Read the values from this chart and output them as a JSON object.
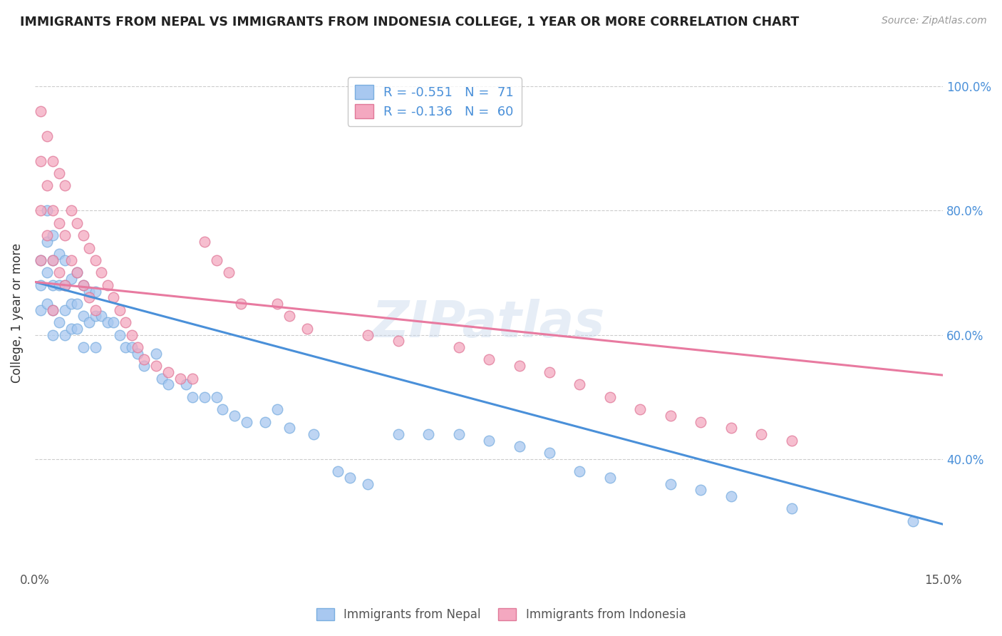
{
  "title": "IMMIGRANTS FROM NEPAL VS IMMIGRANTS FROM INDONESIA COLLEGE, 1 YEAR OR MORE CORRELATION CHART",
  "source": "Source: ZipAtlas.com",
  "ylabel": "College, 1 year or more",
  "watermark": "ZIPatlas",
  "nepal_color": "#a8c8f0",
  "nepal_edge_color": "#7aaee0",
  "indonesia_color": "#f4a8c0",
  "indonesia_edge_color": "#e07898",
  "nepal_line_color": "#4a90d9",
  "indonesia_line_color": "#e87aa0",
  "nepal_R": "-0.551",
  "nepal_N": "71",
  "indonesia_R": "-0.136",
  "indonesia_N": "60",
  "xlim": [
    0.0,
    0.15
  ],
  "ylim": [
    0.22,
    1.05
  ],
  "nepal_trend_x0": 0.0,
  "nepal_trend_y0": 0.685,
  "nepal_trend_x1": 0.15,
  "nepal_trend_y1": 0.295,
  "indonesia_trend_x0": 0.0,
  "indonesia_trend_y0": 0.685,
  "indonesia_trend_x1": 0.15,
  "indonesia_trend_y1": 0.535,
  "nepal_x": [
    0.001,
    0.001,
    0.001,
    0.002,
    0.002,
    0.002,
    0.002,
    0.003,
    0.003,
    0.003,
    0.003,
    0.003,
    0.004,
    0.004,
    0.004,
    0.005,
    0.005,
    0.005,
    0.005,
    0.006,
    0.006,
    0.006,
    0.007,
    0.007,
    0.007,
    0.008,
    0.008,
    0.008,
    0.009,
    0.009,
    0.01,
    0.01,
    0.01,
    0.011,
    0.012,
    0.013,
    0.014,
    0.015,
    0.016,
    0.017,
    0.018,
    0.02,
    0.021,
    0.022,
    0.025,
    0.026,
    0.028,
    0.03,
    0.031,
    0.033,
    0.035,
    0.038,
    0.04,
    0.042,
    0.046,
    0.05,
    0.052,
    0.055,
    0.06,
    0.065,
    0.07,
    0.075,
    0.08,
    0.085,
    0.09,
    0.095,
    0.105,
    0.11,
    0.115,
    0.125,
    0.145
  ],
  "nepal_y": [
    0.72,
    0.68,
    0.64,
    0.8,
    0.75,
    0.7,
    0.65,
    0.76,
    0.72,
    0.68,
    0.64,
    0.6,
    0.73,
    0.68,
    0.62,
    0.72,
    0.68,
    0.64,
    0.6,
    0.69,
    0.65,
    0.61,
    0.7,
    0.65,
    0.61,
    0.68,
    0.63,
    0.58,
    0.67,
    0.62,
    0.67,
    0.63,
    0.58,
    0.63,
    0.62,
    0.62,
    0.6,
    0.58,
    0.58,
    0.57,
    0.55,
    0.57,
    0.53,
    0.52,
    0.52,
    0.5,
    0.5,
    0.5,
    0.48,
    0.47,
    0.46,
    0.46,
    0.48,
    0.45,
    0.44,
    0.38,
    0.37,
    0.36,
    0.44,
    0.44,
    0.44,
    0.43,
    0.42,
    0.41,
    0.38,
    0.37,
    0.36,
    0.35,
    0.34,
    0.32,
    0.3
  ],
  "indonesia_x": [
    0.001,
    0.001,
    0.001,
    0.001,
    0.002,
    0.002,
    0.002,
    0.003,
    0.003,
    0.003,
    0.003,
    0.004,
    0.004,
    0.004,
    0.005,
    0.005,
    0.005,
    0.006,
    0.006,
    0.007,
    0.007,
    0.008,
    0.008,
    0.009,
    0.009,
    0.01,
    0.01,
    0.011,
    0.012,
    0.013,
    0.014,
    0.015,
    0.016,
    0.017,
    0.018,
    0.02,
    0.022,
    0.024,
    0.026,
    0.028,
    0.03,
    0.032,
    0.034,
    0.04,
    0.042,
    0.045,
    0.055,
    0.06,
    0.07,
    0.075,
    0.08,
    0.085,
    0.09,
    0.095,
    0.1,
    0.105,
    0.11,
    0.115,
    0.12,
    0.125
  ],
  "indonesia_y": [
    0.96,
    0.88,
    0.8,
    0.72,
    0.92,
    0.84,
    0.76,
    0.88,
    0.8,
    0.72,
    0.64,
    0.86,
    0.78,
    0.7,
    0.84,
    0.76,
    0.68,
    0.8,
    0.72,
    0.78,
    0.7,
    0.76,
    0.68,
    0.74,
    0.66,
    0.72,
    0.64,
    0.7,
    0.68,
    0.66,
    0.64,
    0.62,
    0.6,
    0.58,
    0.56,
    0.55,
    0.54,
    0.53,
    0.53,
    0.75,
    0.72,
    0.7,
    0.65,
    0.65,
    0.63,
    0.61,
    0.6,
    0.59,
    0.58,
    0.56,
    0.55,
    0.54,
    0.52,
    0.5,
    0.48,
    0.47,
    0.46,
    0.45,
    0.44,
    0.43
  ]
}
